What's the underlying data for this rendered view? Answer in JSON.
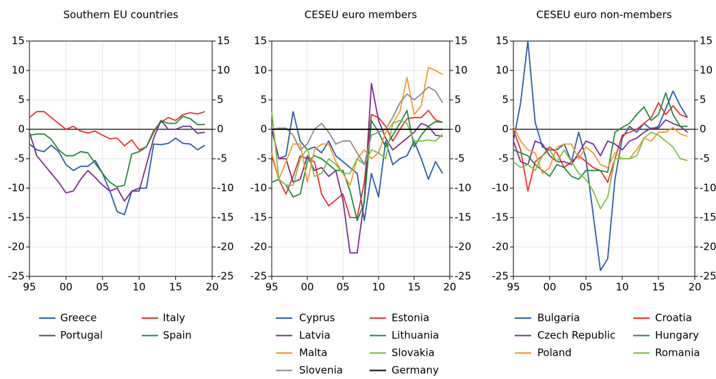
{
  "chart_data": [
    {
      "type": "line",
      "title": "Southern EU countries",
      "grid": true,
      "legend": "bottom",
      "x": [
        1995,
        1996,
        1997,
        1998,
        1999,
        2000,
        2001,
        2002,
        2003,
        2004,
        2005,
        2006,
        2007,
        2008,
        2009,
        2010,
        2011,
        2012,
        2013,
        2014,
        2015,
        2016,
        2017,
        2018,
        2019
      ],
      "xlim": [
        1995,
        2020
      ],
      "xticks": [
        {
          "value": 1995,
          "label": "95"
        },
        {
          "value": 2000,
          "label": "00"
        },
        {
          "value": 2005,
          "label": "05"
        },
        {
          "value": 2010,
          "label": "10"
        },
        {
          "value": 2015,
          "label": "15"
        },
        {
          "value": 2020,
          "label": "20"
        }
      ],
      "ylim": [
        -25,
        15
      ],
      "yticks": [
        15,
        10,
        5,
        0,
        -5,
        -10,
        -15,
        -20,
        -25
      ],
      "y2lim": [
        -25,
        15
      ],
      "y2ticks": [
        15,
        10,
        5,
        0,
        -5,
        -10,
        -15,
        -20,
        -25
      ],
      "series": [
        {
          "name": "Greece",
          "color": "#2b5ca8",
          "values": [
            -2.5,
            -3.5,
            -3.8,
            -2.7,
            -3.8,
            -6,
            -7,
            -6.3,
            -6.3,
            -5.3,
            -7.5,
            -10.5,
            -14,
            -14.5,
            -10.5,
            -10,
            -10,
            -2.5,
            -2.6,
            -2.4,
            -1.5,
            -2.4,
            -2.5,
            -3.5,
            -2.7
          ]
        },
        {
          "name": "Italy",
          "color": "#e8302e",
          "values": [
            2,
            3,
            3,
            2,
            1,
            0,
            0.5,
            -0.3,
            -0.6,
            -0.3,
            -1,
            -1.6,
            -1.5,
            -2.8,
            -1.8,
            -3.5,
            -3,
            -0.2,
            1.2,
            2,
            1.5,
            2.5,
            2.8,
            2.6,
            3
          ]
        },
        {
          "name": "Portugal",
          "color": "#7b2d8e",
          "values": [
            -0.5,
            -4.5,
            -6,
            -7.5,
            -9,
            -10.8,
            -10.5,
            -8.5,
            -7,
            -8.2,
            -9.5,
            -10.5,
            -10,
            -12.2,
            -10.5,
            -10.5,
            -6,
            -1.5,
            1.5,
            0,
            0,
            0.5,
            0.5,
            -0.7,
            -0.5
          ]
        },
        {
          "name": "Spain",
          "color": "#1f8a3c",
          "values": [
            -1,
            -0.8,
            -0.8,
            -1.7,
            -3.5,
            -4.5,
            -4.5,
            -3.8,
            -4,
            -5.8,
            -7.5,
            -9,
            -9.8,
            -9.5,
            -4.2,
            -3.8,
            -3,
            -0.5,
            1.5,
            1,
            1,
            2.2,
            1.8,
            0.8,
            0.8
          ]
        }
      ]
    },
    {
      "type": "line",
      "title": "CESEU euro members",
      "grid": true,
      "legend": "bottom",
      "x": [
        1995,
        1996,
        1997,
        1998,
        1999,
        2000,
        2001,
        2002,
        2003,
        2004,
        2005,
        2006,
        2007,
        2008,
        2009,
        2010,
        2011,
        2012,
        2013,
        2014,
        2015,
        2016,
        2017,
        2018,
        2019
      ],
      "xlim": [
        1995,
        2020
      ],
      "xticks": [
        {
          "value": 1995,
          "label": "95"
        },
        {
          "value": 2000,
          "label": "00"
        },
        {
          "value": 2005,
          "label": "05"
        },
        {
          "value": 2010,
          "label": "10"
        },
        {
          "value": 2015,
          "label": "15"
        },
        {
          "value": 2020,
          "label": "20"
        }
      ],
      "ylim": [
        -25,
        15
      ],
      "yticks": [
        15,
        10,
        5,
        0,
        -5,
        -10,
        -15,
        -20,
        -25
      ],
      "y2lim": [
        -25,
        15
      ],
      "y2ticks": [
        15,
        10,
        5,
        0,
        -5,
        -10,
        -15,
        -20,
        -25
      ],
      "series": [
        {
          "name": "Cyprus",
          "color": "#2b5ca8",
          "values": [
            0,
            -5,
            -4.5,
            3,
            -2,
            -3.5,
            -3,
            -4,
            -2,
            -4.5,
            -5.5,
            -6.5,
            -7.5,
            -15.5,
            -7.5,
            -11.5,
            -2,
            -6,
            -5,
            -4.5,
            -2,
            -5,
            -8.5,
            -5.5,
            -7.5
          ]
        },
        {
          "name": "Estonia",
          "color": "#e8302e",
          "values": [
            -4.5,
            -8.5,
            -11,
            -8,
            -4.5,
            -5,
            -5.5,
            -11,
            -13,
            -12,
            -11,
            -15,
            -15,
            -9,
            2.5,
            2,
            0.5,
            -2,
            0,
            1.8,
            2,
            2,
            3.2,
            1.6,
            1.2
          ]
        },
        {
          "name": "Latvia",
          "color": "#7b2d8e",
          "values": [
            0,
            -5,
            -5,
            -9,
            -8.5,
            -4.5,
            -7,
            -6.5,
            -8,
            -7,
            -12,
            -21,
            -21,
            -12,
            7.8,
            1.5,
            -1.5,
            -3.5,
            -2.5,
            -1.5,
            -0.5,
            1,
            0.5,
            -1,
            -1.2
          ]
        },
        {
          "name": "Lithuania",
          "color": "#1f8a3c",
          "values": [
            -9,
            -8.5,
            -9.5,
            -11.5,
            -11,
            -5.5,
            -4.5,
            -5,
            -6,
            -7,
            -7,
            -10.5,
            -15.5,
            -12.5,
            1.5,
            -0.5,
            -3,
            -1,
            1,
            3.2,
            -3,
            -1,
            0.5,
            1.3,
            1.2
          ]
        },
        {
          "name": "Malta",
          "color": "#f39a2e",
          "values": [
            -4,
            -8.5,
            -5.5,
            -2.5,
            -2.5,
            -9,
            -3.5,
            -2.5,
            -2.5,
            -5.5,
            -7.5,
            -9.5,
            -5,
            -3.5,
            -5,
            -4,
            -0.5,
            1,
            3,
            8.8,
            2.5,
            4,
            10.5,
            10,
            9.3
          ]
        },
        {
          "name": "Slovakia",
          "color": "#7dc142",
          "values": [
            3,
            -8.5,
            -9.5,
            -9.5,
            -5,
            -3.3,
            -8,
            -7.5,
            -5,
            -6,
            -7.5,
            -7.5,
            -5,
            -6,
            -3.5,
            -4,
            -5,
            1,
            1.5,
            1,
            -2,
            -2,
            -1.8,
            -2,
            -0.8
          ]
        },
        {
          "name": "Slovenia",
          "color": "#8c8c8c",
          "values": [
            0,
            0.2,
            0.2,
            -1,
            -3.5,
            -2.5,
            0,
            1,
            -0.5,
            -2.5,
            -2,
            -2,
            -4,
            -6,
            -1,
            -0.5,
            0,
            2,
            4.5,
            6,
            5,
            6,
            7.2,
            6.5,
            4.5
          ]
        },
        {
          "name": "Germany",
          "color": "#000000",
          "values": [
            0,
            0,
            0,
            0,
            0,
            0,
            0,
            0,
            0,
            0,
            0,
            0,
            0,
            0,
            0,
            0,
            0,
            0,
            0,
            0,
            0,
            0,
            0,
            0,
            0
          ]
        }
      ]
    },
    {
      "type": "line",
      "title": "CESEU euro non-members",
      "grid": true,
      "legend": "bottom",
      "x": [
        1995,
        1996,
        1997,
        1998,
        1999,
        2000,
        2001,
        2002,
        2003,
        2004,
        2005,
        2006,
        2007,
        2008,
        2009,
        2010,
        2011,
        2012,
        2013,
        2014,
        2015,
        2016,
        2017,
        2018,
        2019
      ],
      "xlim": [
        1995,
        2020
      ],
      "xticks": [
        {
          "value": 1995,
          "label": "95"
        },
        {
          "value": 2000,
          "label": "00"
        },
        {
          "value": 2005,
          "label": "05"
        },
        {
          "value": 2010,
          "label": "10"
        },
        {
          "value": 2015,
          "label": "15"
        },
        {
          "value": 2020,
          "label": "20"
        }
      ],
      "ylim": [
        -25,
        15
      ],
      "yticks": [
        15,
        10,
        5,
        0,
        -5,
        -10,
        -15,
        -20,
        -25
      ],
      "y2lim": [
        -25,
        15
      ],
      "y2ticks": [
        15,
        10,
        5,
        0,
        -5,
        -10,
        -15,
        -20,
        -25
      ],
      "series": [
        {
          "name": "Bulgaria",
          "color": "#2b5ca8",
          "values": [
            -2,
            4.5,
            15,
            1.2,
            -3,
            -3.5,
            -3.5,
            -2.5,
            -5.5,
            -0.5,
            -5,
            -14.5,
            -24,
            -22,
            -8.5,
            -1.5,
            0.5,
            -0.5,
            1,
            0,
            0.5,
            3.5,
            6.5,
            4,
            2
          ]
        },
        {
          "name": "Croatia",
          "color": "#e8302e",
          "values": [
            0,
            -3.5,
            -10.5,
            -5.5,
            -4.5,
            -3,
            -4,
            -6.5,
            -5.5,
            -4.5,
            -5.5,
            -6.5,
            -7,
            -9,
            -5,
            -1,
            -0.5,
            0,
            1,
            2,
            4.5,
            2.5,
            4,
            2.5,
            2
          ]
        },
        {
          "name": "Czech Republic",
          "color": "#7b2d8e",
          "values": [
            -2,
            -5.5,
            -6,
            -2,
            -2.5,
            -4.5,
            -5.5,
            -5.5,
            -6,
            -4,
            -2,
            -2.5,
            -4.5,
            -2,
            -2.5,
            -3.5,
            -2,
            -1.5,
            -0.5,
            0.2,
            0.2,
            1.6,
            1,
            0.5,
            -0.5
          ]
        },
        {
          "name": "Hungary",
          "color": "#1f8a3c",
          "values": [
            -3.5,
            -4,
            -4.5,
            -6,
            -7,
            -8,
            -6,
            -6.5,
            -8,
            -8.5,
            -7,
            -7,
            -7,
            -7.3,
            -0.5,
            0.3,
            1,
            2.5,
            3.8,
            1.5,
            2.5,
            6.2,
            2.5,
            0.5,
            0.5
          ]
        },
        {
          "name": "Poland",
          "color": "#f39a2e",
          "values": [
            0.5,
            -2,
            -3.5,
            -4,
            -7.5,
            -6.5,
            -3,
            -2.5,
            -2.5,
            -5,
            -3,
            -4,
            -6,
            -6.5,
            -4,
            -5,
            -5,
            -3.5,
            -1.5,
            -2,
            -0.5,
            -0.5,
            0.3,
            -0.8,
            -1.2
          ]
        },
        {
          "name": "Romania",
          "color": "#7dc142",
          "values": [
            -5.5,
            -6.5,
            -6,
            -7,
            -4.5,
            -3.5,
            -5.5,
            -3.5,
            -5.5,
            -7.5,
            -8.5,
            -10.5,
            -13.5,
            -11.5,
            -5,
            -5,
            -5,
            -4.5,
            -1.5,
            -0.5,
            -1,
            -2,
            -3,
            -5,
            -5.3
          ]
        }
      ]
    }
  ]
}
